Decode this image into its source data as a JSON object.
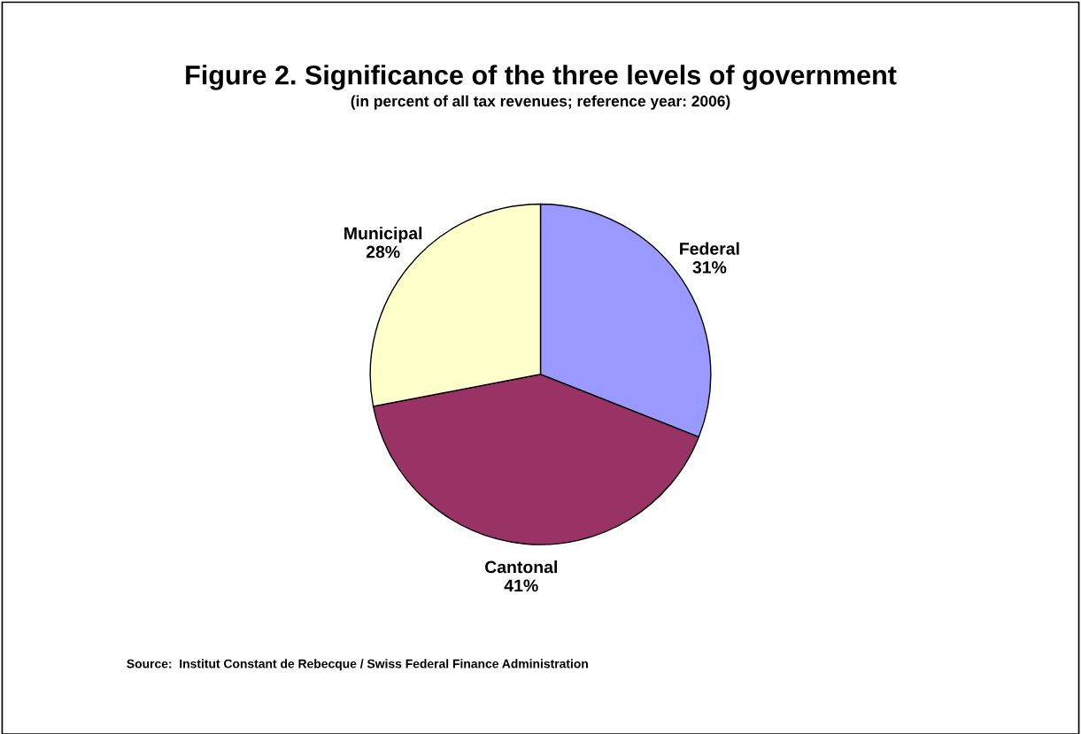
{
  "chart_data": {
    "type": "pie",
    "title": "Figure 2. Significance of the three levels of government",
    "subtitle": "(in percent of all tax revenues; reference year: 2006)",
    "categories": [
      "Federal",
      "Cantonal",
      "Municipal"
    ],
    "values": [
      31,
      41,
      28
    ],
    "value_labels": [
      "31%",
      "41%",
      "28%"
    ],
    "colors": [
      "#9999ff",
      "#993366",
      "#ffffcc"
    ],
    "legend": false,
    "annotations": [
      "Source:  Institut Constant de Rebecque / Swiss Federal Finance Administration"
    ]
  }
}
